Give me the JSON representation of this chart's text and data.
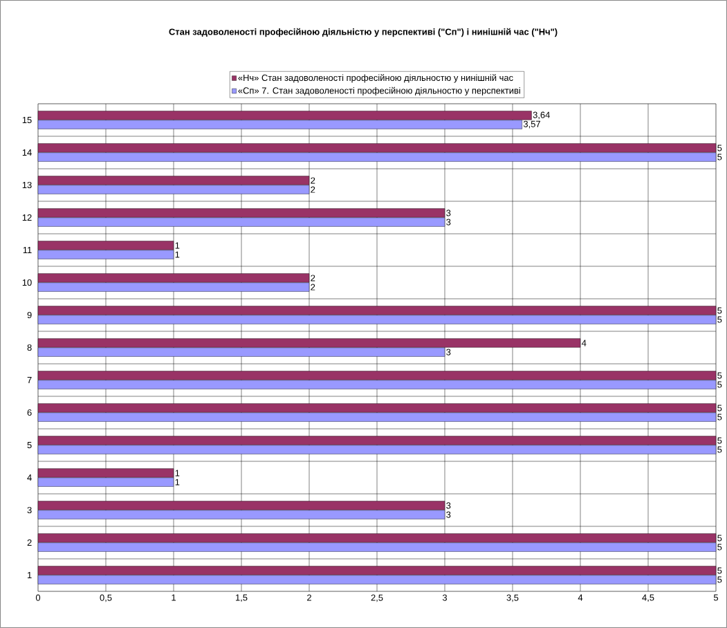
{
  "chart_data": {
    "type": "bar",
    "orientation": "horizontal",
    "title": "Стан задоволеності професійною діяльністю у перспективі (\"Сп\") і нинішній час (\"Нч\")",
    "categories": [
      "15",
      "14",
      "13",
      "12",
      "11",
      "10",
      "9",
      "8",
      "7",
      "6",
      "5",
      "4",
      "3",
      "2",
      "1"
    ],
    "series": [
      {
        "name": "«Нч» Стан задоволеності професійною діяльностю у нинішній час",
        "color": "#993366",
        "values": [
          3.64,
          5,
          2,
          3,
          1,
          2,
          5,
          4,
          5,
          5,
          5,
          1,
          3,
          5,
          5
        ],
        "value_labels": [
          "3,64",
          "5",
          "2",
          "3",
          "1",
          "2",
          "5",
          "4",
          "5",
          "5",
          "5",
          "1",
          "3",
          "5",
          "5"
        ]
      },
      {
        "name": "«Сп» 7. Стан задоволеності професійною діяльностю у перспективі",
        "color": "#9999ff",
        "values": [
          3.57,
          5,
          2,
          3,
          1,
          2,
          5,
          3,
          5,
          5,
          5,
          1,
          3,
          5,
          5
        ],
        "value_labels": [
          "3,57",
          "5",
          "2",
          "3",
          "1",
          "2",
          "5",
          "3",
          "5",
          "5",
          "5",
          "1",
          "3",
          "5",
          "5"
        ]
      }
    ],
    "xlim": [
      0,
      5
    ],
    "xticks": [
      0,
      {
        "value": 0.5,
        "label": "0,5"
      },
      1,
      {
        "value": 1.5,
        "label": "1,5"
      },
      2,
      {
        "value": 2.5,
        "label": "2,5"
      },
      3,
      {
        "value": 3.5,
        "label": "3,5"
      },
      4,
      {
        "value": 4.5,
        "label": "4,5"
      },
      5
    ],
    "grid": true,
    "legend": "top"
  }
}
